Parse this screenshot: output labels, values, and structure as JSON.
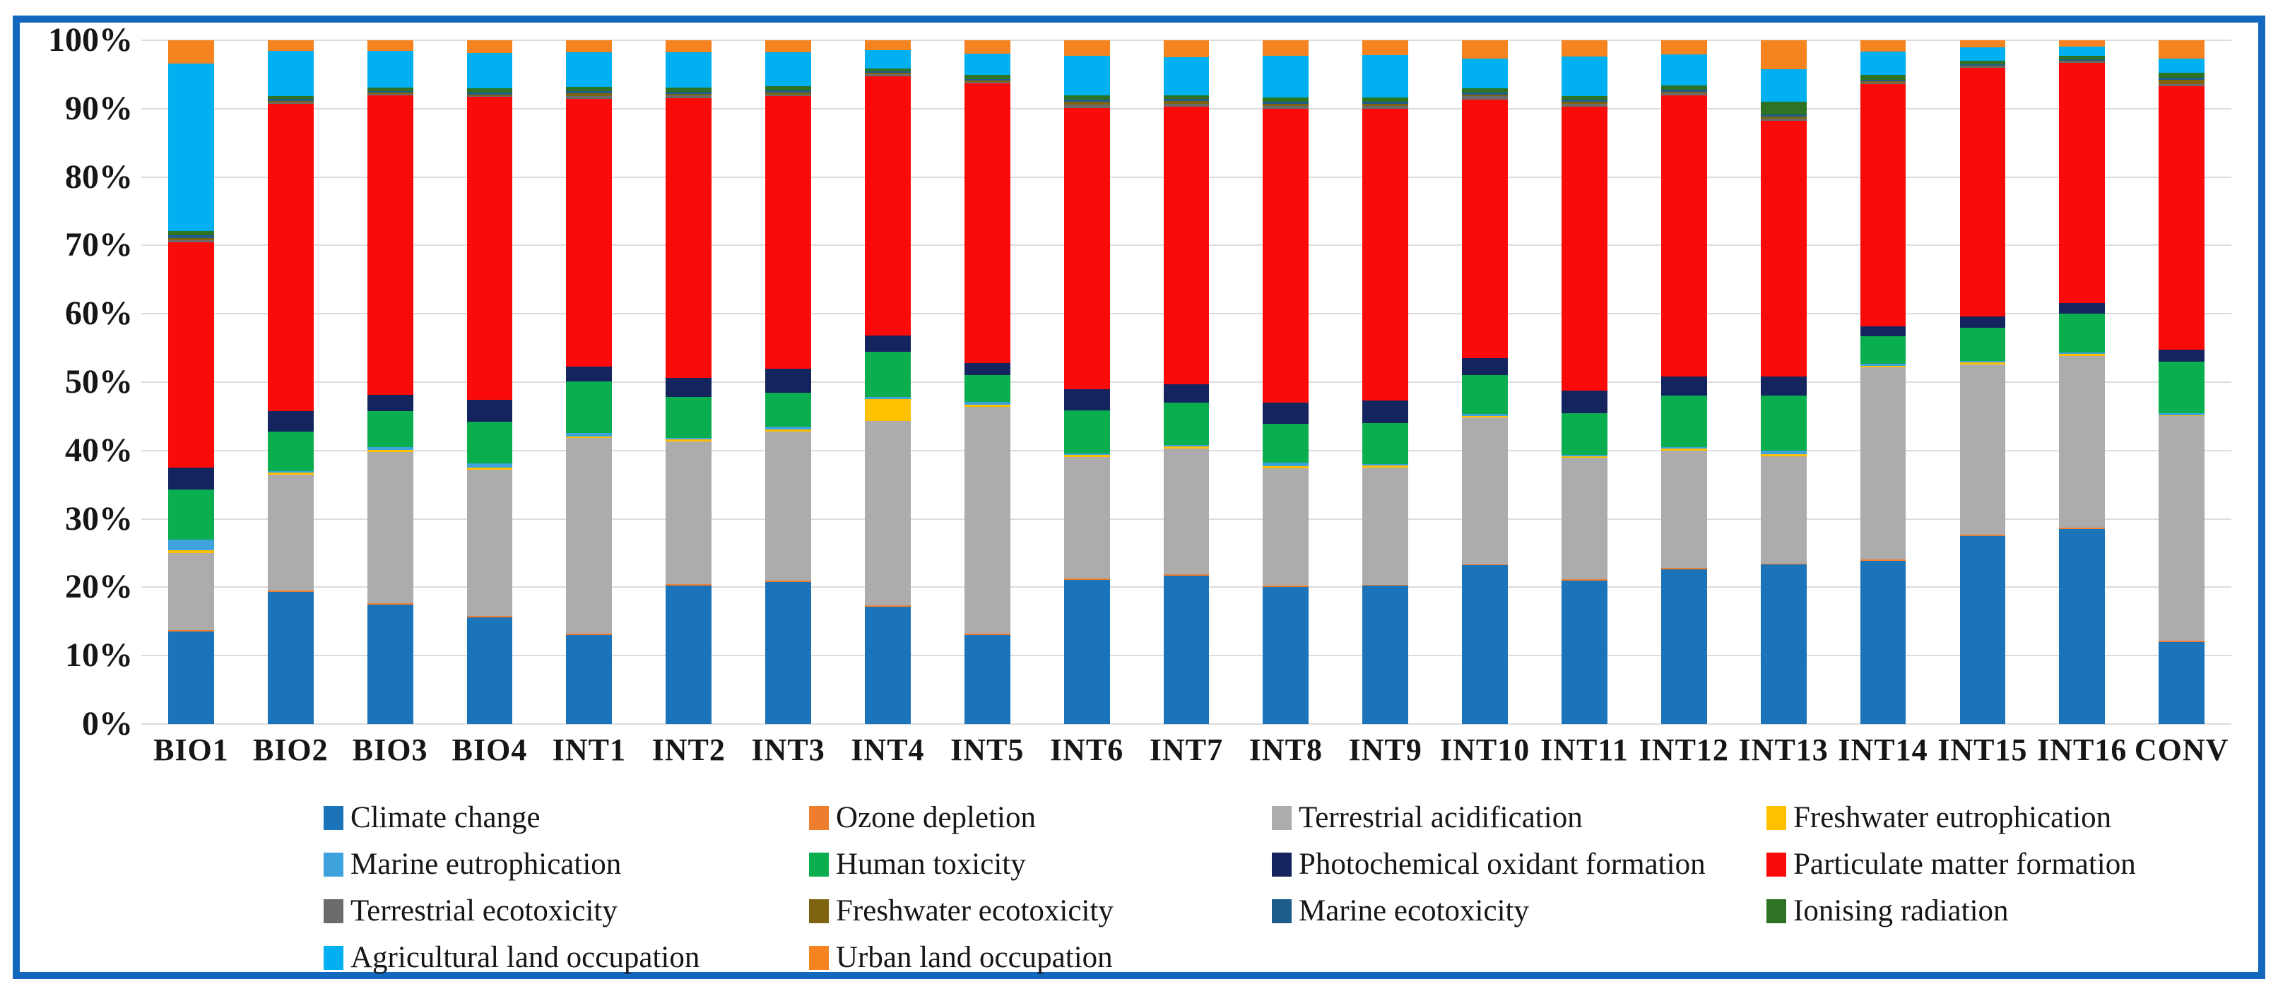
{
  "figure": {
    "border_color": "#1467BE",
    "background": "#FFFFFF",
    "gridline_color": "#DCDCDC"
  },
  "chart_data": {
    "type": "bar",
    "variant": "100%-stacked-column",
    "title": "",
    "xlabel": "",
    "ylabel": "",
    "grid": "horizontal",
    "legend_position": "bottom",
    "legend_columns": 4,
    "categories": [
      "BIO1",
      "BIO2",
      "BIO3",
      "BIO4",
      "INT1",
      "INT2",
      "INT3",
      "INT4",
      "INT5",
      "INT6",
      "INT7",
      "INT8",
      "INT9",
      "INT10",
      "INT11",
      "INT12",
      "INT13",
      "INT14",
      "INT15",
      "INT16",
      "CONV"
    ],
    "y_axis": {
      "min": 0,
      "max": 100,
      "ticks": [
        {
          "label": "0%",
          "value": 0
        },
        {
          "label": "10%",
          "value": 10
        },
        {
          "label": "20%",
          "value": 20
        },
        {
          "label": "30%",
          "value": 30
        },
        {
          "label": "40%",
          "value": 40
        },
        {
          "label": "50%",
          "value": 50
        },
        {
          "label": "60%",
          "value": 60
        },
        {
          "label": "70%",
          "value": 70
        },
        {
          "label": "80%",
          "value": 80
        },
        {
          "label": "90%",
          "value": 90
        },
        {
          "label": "100%",
          "value": 100
        }
      ]
    },
    "series": [
      {
        "name": "Climate change",
        "color": "#1B73B9",
        "values": [
          13.5,
          19.3,
          17.5,
          15.6,
          13.0,
          20.3,
          20.8,
          17.2,
          13.0,
          21.1,
          21.7,
          20.0,
          20.2,
          23.2,
          21.0,
          22.6,
          23.3,
          23.9,
          27.5,
          28.5,
          12.0
        ]
      },
      {
        "name": "Ozone depletion",
        "color": "#EE7D2E",
        "values": [
          0.2,
          0.2,
          0.2,
          0.2,
          0.2,
          0.2,
          0.2,
          0.2,
          0.2,
          0.2,
          0.2,
          0.2,
          0.2,
          0.2,
          0.2,
          0.2,
          0.2,
          0.2,
          0.2,
          0.2,
          0.2
        ]
      },
      {
        "name": "Terrestrial acidification",
        "color": "#ACACAC",
        "values": [
          11.3,
          17.0,
          22.1,
          21.4,
          28.6,
          20.8,
          21.8,
          26.9,
          33.2,
          17.8,
          18.4,
          17.2,
          17.1,
          21.4,
          17.7,
          17.2,
          15.7,
          28.1,
          24.9,
          25.1,
          32.8
        ]
      },
      {
        "name": "Freshwater eutrophication",
        "color": "#FFC000",
        "values": [
          0.4,
          0.3,
          0.3,
          0.3,
          0.3,
          0.3,
          0.3,
          3.2,
          0.3,
          0.3,
          0.3,
          0.3,
          0.3,
          0.2,
          0.3,
          0.3,
          0.3,
          0.2,
          0.3,
          0.3,
          0.2
        ]
      },
      {
        "name": "Marine eutrophication",
        "color": "#3EA3DC",
        "values": [
          1.6,
          0.2,
          0.4,
          0.6,
          0.5,
          0.2,
          0.4,
          0.3,
          0.4,
          0.2,
          0.2,
          0.5,
          0.2,
          0.4,
          0.2,
          0.2,
          0.5,
          0.3,
          0.2,
          0.2,
          0.3
        ]
      },
      {
        "name": "Human toxicity",
        "color": "#0BAE4E",
        "values": [
          7.3,
          5.8,
          5.3,
          6.1,
          7.5,
          6.0,
          5.0,
          6.7,
          3.9,
          6.3,
          6.2,
          5.7,
          6.0,
          5.6,
          6.1,
          7.5,
          8.0,
          4.0,
          4.9,
          5.7,
          7.5
        ]
      },
      {
        "name": "Photochemical oxidant formation",
        "color": "#14245E",
        "values": [
          3.2,
          3.0,
          2.4,
          3.2,
          2.2,
          2.8,
          3.5,
          2.3,
          1.8,
          3.1,
          2.7,
          3.1,
          3.3,
          2.5,
          3.3,
          2.8,
          2.8,
          1.5,
          1.6,
          1.6,
          1.8
        ]
      },
      {
        "name": "Particulate matter formation",
        "color": "#FB0A0A",
        "values": [
          33.0,
          44.9,
          43.8,
          44.3,
          39.1,
          40.9,
          39.8,
          37.9,
          40.9,
          41.1,
          40.6,
          43.0,
          42.7,
          37.8,
          41.5,
          41.2,
          37.4,
          35.4,
          36.4,
          35.1,
          38.5
        ]
      },
      {
        "name": "Terrestrial ecotoxicity",
        "color": "#6B6B6B",
        "values": [
          0.3,
          0.2,
          0.2,
          0.2,
          0.5,
          0.4,
          0.3,
          0.4,
          0.2,
          0.5,
          0.4,
          0.4,
          0.4,
          0.5,
          0.4,
          0.3,
          0.3,
          0.2,
          0.2,
          0.2,
          0.3
        ]
      },
      {
        "name": "Freshwater ecotoxicity",
        "color": "#7F6410",
        "values": [
          0.3,
          0.2,
          0.2,
          0.2,
          0.4,
          0.3,
          0.3,
          0.2,
          0.2,
          0.4,
          0.4,
          0.3,
          0.3,
          0.3,
          0.3,
          0.2,
          0.4,
          0.2,
          0.1,
          0.1,
          0.6
        ]
      },
      {
        "name": "Marine ecotoxicity",
        "color": "#1E5C8C",
        "values": [
          0.4,
          0.3,
          0.2,
          0.3,
          0.3,
          0.3,
          0.3,
          0.2,
          0.2,
          0.3,
          0.3,
          0.3,
          0.3,
          0.3,
          0.3,
          0.3,
          0.3,
          0.2,
          0.2,
          0.2,
          0.3
        ]
      },
      {
        "name": "Ionising radiation",
        "color": "#2D7323",
        "values": [
          0.6,
          0.5,
          0.5,
          0.6,
          0.6,
          0.6,
          0.6,
          0.4,
          0.6,
          0.7,
          0.6,
          0.6,
          0.6,
          0.6,
          0.6,
          0.6,
          1.8,
          0.7,
          0.5,
          0.5,
          0.8
        ]
      },
      {
        "name": "Agricultural land occupation",
        "color": "#00B0F0",
        "values": [
          24.5,
          6.6,
          5.4,
          5.2,
          5.1,
          5.2,
          5.0,
          2.7,
          3.1,
          5.7,
          5.5,
          6.1,
          6.2,
          4.3,
          5.7,
          4.5,
          4.8,
          3.5,
          2.0,
          1.4,
          2.0
        ]
      },
      {
        "name": "Urban land occupation",
        "color": "#F5831F",
        "values": [
          3.4,
          1.5,
          1.5,
          1.8,
          1.7,
          1.7,
          1.7,
          1.4,
          2.0,
          2.3,
          2.5,
          2.3,
          2.2,
          2.7,
          2.4,
          2.1,
          4.2,
          1.6,
          1.0,
          0.9,
          2.7
        ]
      }
    ]
  }
}
